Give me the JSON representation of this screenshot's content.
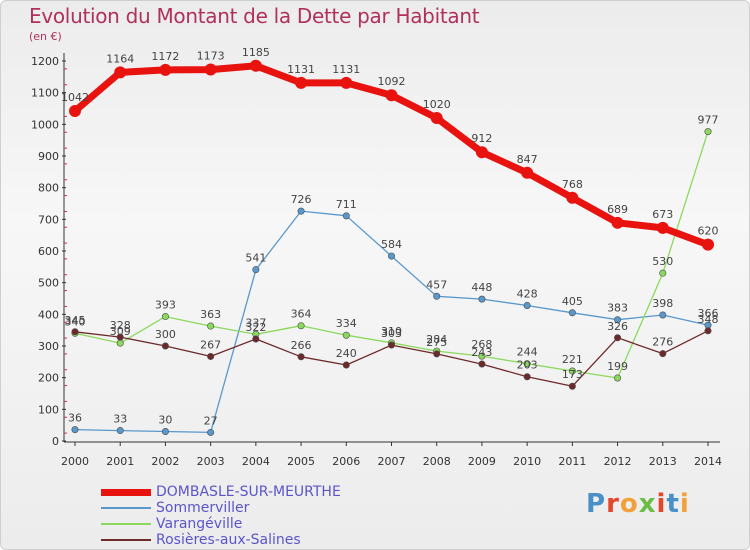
{
  "header": {
    "title": "Evolution du Montant de la Dette par Habitant",
    "unit": "(en €)"
  },
  "logo": {
    "text": "Proxiti",
    "letter_colors": [
      "#4a90c8",
      "#e2462c",
      "#f2a13a",
      "#6cbd45",
      "#e2462c",
      "#4a90c8",
      "#f2a13a"
    ]
  },
  "chart_data": {
    "type": "line",
    "title": "Evolution du Montant de la Dette par Habitant",
    "ylabel": "(en €)",
    "xlabel": "",
    "x": [
      "2000",
      "2001",
      "2002",
      "2003",
      "2004",
      "2005",
      "2006",
      "2007",
      "2008",
      "2009",
      "2010",
      "2011",
      "2012",
      "2013",
      "2014"
    ],
    "ylim": [
      0,
      1200
    ],
    "yticks": [
      0,
      100,
      200,
      300,
      400,
      500,
      600,
      700,
      800,
      900,
      1000,
      1100,
      1200
    ],
    "grid": false,
    "legend_position": "bottom-left",
    "series": [
      {
        "name": "DOMBASLE-SUR-MEURTHE",
        "color": "#e8120f",
        "width": 7,
        "values": [
          1042,
          1164,
          1172,
          1173,
          1185,
          1131,
          1131,
          1092,
          1020,
          912,
          847,
          768,
          689,
          673,
          620
        ],
        "labels": [
          "1042",
          "1164",
          "1172",
          "1173",
          "1185",
          "1131",
          "1131",
          "1092",
          "1020",
          "912",
          "847",
          "768",
          "689",
          "673",
          "620"
        ]
      },
      {
        "name": "Sommerviller",
        "color": "#5a98cc",
        "width": 1.3,
        "values": [
          36,
          33,
          30,
          27,
          541,
          726,
          711,
          584,
          457,
          448,
          428,
          405,
          383,
          398,
          366
        ],
        "labels": [
          "36",
          "33",
          "30",
          "27",
          "541",
          "726",
          "711",
          "584",
          "457",
          "448",
          "428",
          "405",
          "383",
          "398",
          "366"
        ]
      },
      {
        "name": "Varangéville",
        "color": "#8bd95c",
        "width": 1.3,
        "values": [
          340,
          309,
          393,
          363,
          337,
          364,
          334,
          310,
          284,
          268,
          244,
          221,
          199,
          530,
          977
        ],
        "labels": [
          "340",
          "309",
          "393",
          "363",
          "337",
          "364",
          "334",
          "310",
          "284",
          "268",
          "244",
          "221",
          "199",
          "530",
          "977"
        ]
      },
      {
        "name": "Rosières-aux-Salines",
        "color": "#6e2a2a",
        "width": 1.3,
        "values": [
          345,
          328,
          300,
          267,
          322,
          266,
          240,
          303,
          275,
          243,
          203,
          173,
          326,
          276,
          348
        ],
        "labels": [
          "345",
          "328",
          "300",
          "267",
          "322",
          "266",
          "240",
          "303",
          "275",
          "243",
          "203",
          "173",
          "326",
          "276",
          "348"
        ]
      }
    ]
  }
}
